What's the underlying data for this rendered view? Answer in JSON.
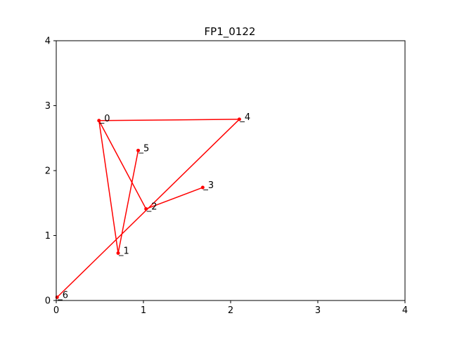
{
  "chart_data": {
    "type": "line",
    "title": "FP1_0122",
    "xlabel": "",
    "ylabel": "",
    "xlim": [
      0,
      4
    ],
    "ylim": [
      0,
      4
    ],
    "xticks": [
      "0",
      "1",
      "2",
      "3",
      "4"
    ],
    "yticks": [
      "0",
      "1",
      "2",
      "3",
      "4"
    ],
    "grid": false,
    "line_color": "#ff0000",
    "series": [
      {
        "points": [
          {
            "label": "_0",
            "x": 0.49,
            "y": 2.77
          },
          {
            "label": "_1",
            "x": 0.71,
            "y": 0.73
          },
          {
            "label": "_5",
            "x": 0.94,
            "y": 2.31
          },
          {
            "label": "_2",
            "x": 1.03,
            "y": 1.41
          },
          {
            "label": "_3",
            "x": 1.68,
            "y": 1.74
          }
        ]
      },
      {
        "points": [
          {
            "label": "_0",
            "x": 0.49,
            "y": 2.77
          },
          {
            "label": "_4",
            "x": 2.1,
            "y": 2.79
          },
          {
            "label": "_6",
            "x": 0.01,
            "y": 0.05
          }
        ]
      }
    ],
    "segments": [
      [
        0.49,
        2.77,
        0.71,
        0.73
      ],
      [
        0.71,
        0.73,
        0.94,
        2.31
      ],
      [
        0.49,
        2.77,
        1.03,
        1.41
      ],
      [
        1.03,
        1.41,
        1.68,
        1.74
      ],
      [
        0.49,
        2.77,
        2.1,
        2.79
      ],
      [
        2.1,
        2.79,
        0.01,
        0.05
      ]
    ]
  }
}
